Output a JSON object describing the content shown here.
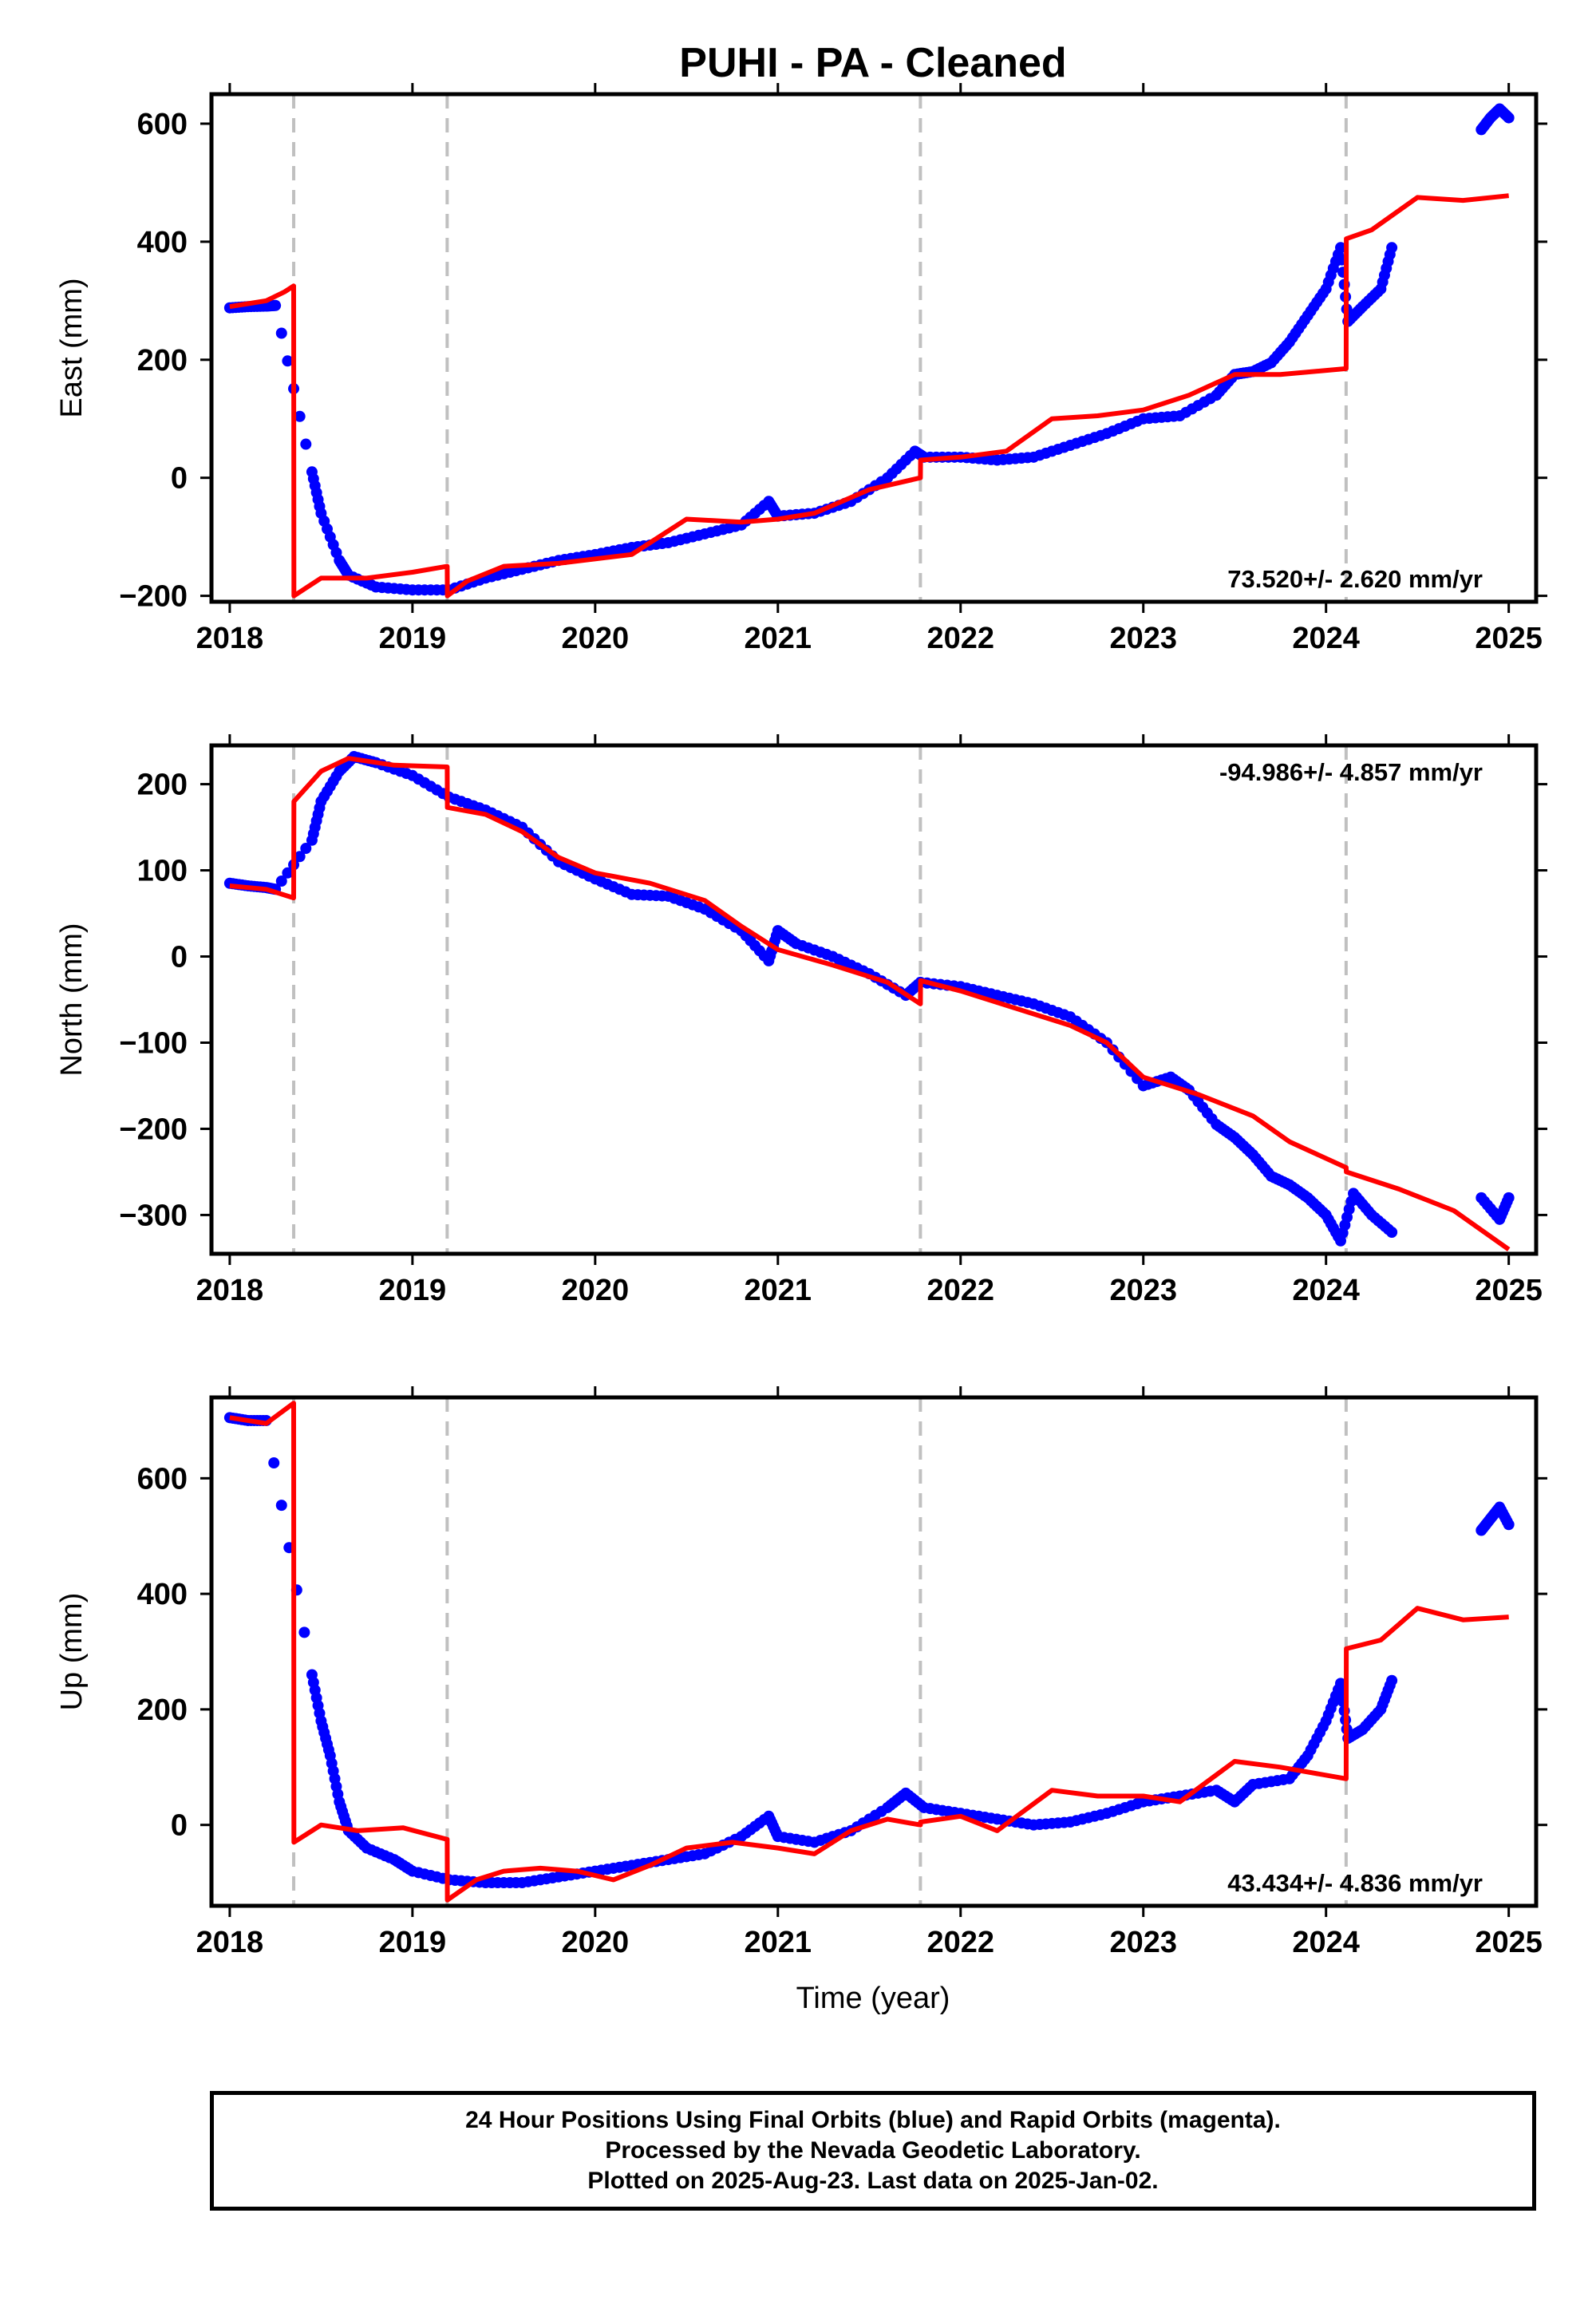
{
  "figure": {
    "title": "PUHI  - PA - Cleaned",
    "xlabel": "Time (year)"
  },
  "footer": {
    "line1": "24 Hour Positions Using Final Orbits (blue) and Rapid Orbits (magenta).",
    "line2": "Processed by the Nevada Geodetic Laboratory.",
    "line3": "Plotted on 2025-Aug-23. Last data on 2025-Jan-02."
  },
  "colors": {
    "data": "#0000ff",
    "model": "#ff0000",
    "event_line": "#c0c0c0",
    "axis": "#000000"
  },
  "chart_data": [
    {
      "type": "scatter",
      "ylabel": "East (mm)",
      "xlim": [
        2017.9,
        2025.15
      ],
      "ylim": [
        -210,
        650
      ],
      "xticks": [
        2018,
        2019,
        2020,
        2021,
        2022,
        2023,
        2024,
        2025
      ],
      "yticks": [
        -200,
        0,
        200,
        400,
        600
      ],
      "rate_text": "73.520+/- 2.620 mm/yr",
      "rate_position": "bottom-right",
      "event_lines": [
        2018.35,
        2019.19,
        2021.78,
        2024.11
      ],
      "series": [
        {
          "kind": "points",
          "color": "#0000ff",
          "x": [
            2018.0,
            2018.1,
            2018.2,
            2018.25,
            2018.45,
            2018.5,
            2018.6,
            2018.65,
            2018.8,
            2019.0,
            2019.2,
            2019.4,
            2019.6,
            2019.8,
            2020.0,
            2020.2,
            2020.4,
            2020.6,
            2020.8,
            2020.95,
            2021.0,
            2021.2,
            2021.4,
            2021.6,
            2021.75,
            2021.8,
            2022.0,
            2022.2,
            2022.4,
            2022.6,
            2022.8,
            2023.0,
            2023.2,
            2023.4,
            2023.5,
            2023.6,
            2023.7,
            2023.8,
            2023.9,
            2024.0,
            2024.08,
            2024.12,
            2024.2,
            2024.3,
            2024.36,
            2024.85,
            2024.9,
            2024.95,
            2025.0
          ],
          "y": [
            288,
            290,
            291,
            292,
            10,
            -60,
            -140,
            -165,
            -185,
            -190,
            -190,
            -170,
            -155,
            -140,
            -130,
            -118,
            -110,
            -95,
            -80,
            -40,
            -65,
            -60,
            -40,
            0,
            45,
            35,
            35,
            30,
            35,
            55,
            75,
            100,
            105,
            140,
            175,
            180,
            195,
            230,
            275,
            320,
            390,
            265,
            290,
            320,
            390,
            590,
            610,
            625,
            610
          ]
        },
        {
          "kind": "line",
          "color": "#ff0000",
          "x": [
            2018.0,
            2018.1,
            2018.2,
            2018.3,
            2018.35,
            2018.351,
            2018.5,
            2018.75,
            2019.0,
            2019.19,
            2019.191,
            2019.3,
            2019.5,
            2019.8,
            2020.2,
            2020.5,
            2020.8,
            2021.0,
            2021.2,
            2021.5,
            2021.78,
            2021.781,
            2022.0,
            2022.25,
            2022.5,
            2022.75,
            2023.0,
            2023.25,
            2023.5,
            2023.75,
            2024.11,
            2024.111,
            2024.25,
            2024.5,
            2024.75,
            2025.0
          ],
          "y": [
            290,
            295,
            300,
            315,
            325,
            -200,
            -170,
            -170,
            -160,
            -150,
            -200,
            -175,
            -150,
            -145,
            -130,
            -70,
            -75,
            -70,
            -60,
            -20,
            0,
            30,
            35,
            45,
            100,
            105,
            115,
            140,
            175,
            175,
            185,
            405,
            420,
            475,
            470,
            478
          ]
        }
      ]
    },
    {
      "type": "scatter",
      "ylabel": "North (mm)",
      "xlim": [
        2017.9,
        2025.15
      ],
      "ylim": [
        -345,
        245
      ],
      "xticks": [
        2018,
        2019,
        2020,
        2021,
        2022,
        2023,
        2024,
        2025
      ],
      "yticks": [
        -300,
        -200,
        -100,
        0,
        100,
        200
      ],
      "rate_text": "-94.986+/- 4.857 mm/yr",
      "rate_position": "top-right",
      "event_lines": [
        2018.35,
        2019.19,
        2021.78,
        2024.11
      ],
      "series": [
        {
          "kind": "points",
          "color": "#0000ff",
          "x": [
            2018.0,
            2018.1,
            2018.2,
            2018.25,
            2018.45,
            2018.5,
            2018.6,
            2018.68,
            2018.8,
            2019.0,
            2019.2,
            2019.4,
            2019.6,
            2019.8,
            2020.0,
            2020.2,
            2020.4,
            2020.6,
            2020.8,
            2020.95,
            2021.0,
            2021.1,
            2021.3,
            2021.5,
            2021.7,
            2021.78,
            2022.0,
            2022.2,
            2022.4,
            2022.6,
            2022.8,
            2023.0,
            2023.15,
            2023.25,
            2023.4,
            2023.5,
            2023.6,
            2023.7,
            2023.8,
            2023.9,
            2024.0,
            2024.08,
            2024.15,
            2024.25,
            2024.36,
            2024.85,
            2024.95,
            2025.0
          ],
          "y": [
            85,
            82,
            80,
            78,
            135,
            180,
            215,
            232,
            225,
            210,
            185,
            170,
            150,
            110,
            90,
            72,
            70,
            55,
            30,
            -5,
            30,
            15,
            0,
            -20,
            -45,
            -30,
            -35,
            -45,
            -55,
            -70,
            -100,
            -150,
            -140,
            -155,
            -195,
            -210,
            -230,
            -255,
            -265,
            -280,
            -300,
            -330,
            -275,
            -300,
            -320,
            -280,
            -305,
            -280
          ]
        },
        {
          "kind": "line",
          "color": "#ff0000",
          "x": [
            2018.0,
            2018.2,
            2018.35,
            2018.351,
            2018.5,
            2018.65,
            2018.9,
            2019.19,
            2019.191,
            2019.4,
            2019.6,
            2019.8,
            2020.0,
            2020.3,
            2020.6,
            2020.8,
            2021.0,
            2021.3,
            2021.6,
            2021.78,
            2021.781,
            2022.0,
            2022.3,
            2022.6,
            2022.8,
            2023.0,
            2023.3,
            2023.6,
            2023.8,
            2024.11,
            2024.111,
            2024.4,
            2024.7,
            2025.0
          ],
          "y": [
            82,
            78,
            68,
            180,
            215,
            230,
            222,
            220,
            173,
            165,
            145,
            115,
            97,
            85,
            65,
            35,
            8,
            -10,
            -30,
            -55,
            -28,
            -40,
            -60,
            -80,
            -100,
            -140,
            -160,
            -185,
            -215,
            -245,
            -250,
            -270,
            -295,
            -340
          ]
        }
      ]
    },
    {
      "type": "scatter",
      "ylabel": "Up (mm)",
      "xlim": [
        2017.9,
        2025.15
      ],
      "ylim": [
        -140,
        740
      ],
      "xticks": [
        2018,
        2019,
        2020,
        2021,
        2022,
        2023,
        2024,
        2025
      ],
      "yticks": [
        0,
        200,
        400,
        600
      ],
      "rate_text": "43.434+/- 4.836 mm/yr",
      "rate_position": "bottom-right",
      "event_lines": [
        2018.35,
        2019.19,
        2021.78,
        2024.11
      ],
      "series": [
        {
          "kind": "points",
          "color": "#0000ff",
          "x": [
            2018.0,
            2018.1,
            2018.2,
            2018.45,
            2018.5,
            2018.55,
            2018.6,
            2018.65,
            2018.75,
            2018.9,
            2019.0,
            2019.2,
            2019.4,
            2019.6,
            2019.8,
            2020.0,
            2020.2,
            2020.4,
            2020.6,
            2020.8,
            2020.95,
            2021.0,
            2021.2,
            2021.4,
            2021.6,
            2021.7,
            2021.8,
            2022.0,
            2022.2,
            2022.4,
            2022.6,
            2022.8,
            2023.0,
            2023.2,
            2023.4,
            2023.5,
            2023.6,
            2023.8,
            2023.9,
            2024.0,
            2024.08,
            2024.12,
            2024.2,
            2024.3,
            2024.36,
            2024.85,
            2024.9,
            2024.95,
            2025.0
          ],
          "y": [
            705,
            700,
            700,
            260,
            180,
            120,
            40,
            -10,
            -40,
            -60,
            -80,
            -95,
            -100,
            -100,
            -90,
            -80,
            -70,
            -60,
            -50,
            -20,
            15,
            -20,
            -30,
            -10,
            30,
            55,
            30,
            20,
            10,
            0,
            5,
            20,
            40,
            50,
            60,
            40,
            70,
            80,
            120,
            180,
            245,
            150,
            165,
            200,
            250,
            510,
            530,
            550,
            520
          ]
        },
        {
          "kind": "line",
          "color": "#ff0000",
          "x": [
            2018.0,
            2018.2,
            2018.35,
            2018.351,
            2018.5,
            2018.7,
            2018.95,
            2019.19,
            2019.191,
            2019.35,
            2019.5,
            2019.7,
            2019.9,
            2020.1,
            2020.3,
            2020.5,
            2020.75,
            2021.0,
            2021.2,
            2021.4,
            2021.6,
            2021.78,
            2021.781,
            2022.0,
            2022.2,
            2022.5,
            2022.75,
            2023.0,
            2023.2,
            2023.5,
            2023.75,
            2024.11,
            2024.111,
            2024.3,
            2024.5,
            2024.75,
            2025.0
          ],
          "y": [
            705,
            695,
            730,
            -30,
            0,
            -10,
            -5,
            -25,
            -130,
            -95,
            -80,
            -75,
            -80,
            -95,
            -70,
            -40,
            -30,
            -40,
            -50,
            -10,
            10,
            0,
            5,
            15,
            -10,
            60,
            50,
            50,
            40,
            110,
            100,
            80,
            305,
            320,
            375,
            355,
            360
          ]
        }
      ]
    }
  ]
}
